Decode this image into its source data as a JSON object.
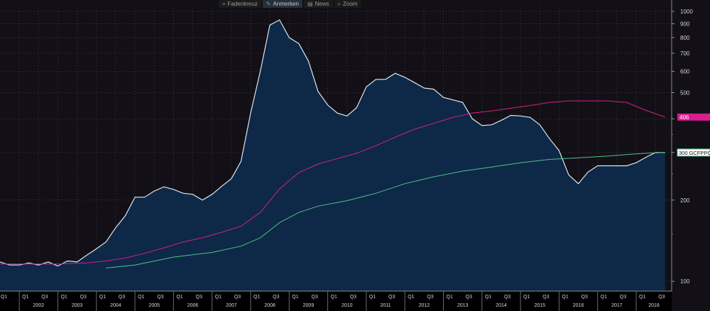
{
  "toolbar": {
    "items": [
      {
        "label": "Fadenkreuz",
        "icon": "crosshair-icon",
        "glyph": "⌖"
      },
      {
        "label": "Anmerken",
        "icon": "pen-icon",
        "glyph": "✎"
      },
      {
        "label": "News",
        "icon": "newspaper-icon",
        "glyph": "▤"
      },
      {
        "label": "Zoom",
        "icon": "magnifier-icon",
        "glyph": "⌕"
      }
    ]
  },
  "colors": {
    "background": "#121016",
    "area_fill": "#0f2a4a",
    "area_line": "#dfe6ee",
    "magenta": "#d81d8f",
    "green": "#52c08a"
  },
  "chart_data": {
    "type": "area",
    "y_scale": "log",
    "ylim": [
      92,
      1050
    ],
    "y_ticks": [
      100,
      200,
      300,
      400,
      500,
      600,
      700,
      800,
      900,
      1000
    ],
    "y_tick_labels": [
      "100",
      "200",
      "",
      "",
      "500",
      "600",
      "700",
      "800",
      "900",
      "1000"
    ],
    "xlim": [
      2001.5,
      2018.92
    ],
    "year_labels": [
      "2002",
      "2003",
      "2004",
      "2005",
      "2006",
      "2007",
      "2008",
      "2009",
      "2010",
      "2011",
      "2012",
      "2013",
      "2014",
      "2015",
      "2016",
      "2017",
      "2018"
    ],
    "quarter_labels": [
      "Q1",
      "Q3"
    ],
    "grid": true,
    "series": [
      {
        "kind": "area",
        "x": [
          2001.5,
          2001.75,
          2002,
          2002.25,
          2002.5,
          2002.75,
          2003,
          2003.25,
          2003.5,
          2003.75,
          2004,
          2004.25,
          2004.5,
          2004.75,
          2005,
          2005.25,
          2005.5,
          2005.75,
          2006,
          2006.25,
          2006.5,
          2006.75,
          2007,
          2007.25,
          2007.5,
          2007.75,
          2008,
          2008.25,
          2008.5,
          2008.75,
          2009,
          2009.25,
          2009.5,
          2009.75,
          2010,
          2010.25,
          2010.5,
          2010.75,
          2011,
          2011.25,
          2011.5,
          2011.75,
          2012,
          2012.25,
          2012.5,
          2012.75,
          2013,
          2013.25,
          2013.5,
          2013.75,
          2014,
          2014.25,
          2014.5,
          2014.75,
          2015,
          2015.25,
          2015.5,
          2015.75,
          2016,
          2016.25,
          2016.5,
          2016.75,
          2017,
          2017.25,
          2017.5,
          2017.75,
          2018,
          2018.25,
          2018.5,
          2018.75
        ],
        "values": [
          118,
          115,
          115,
          117,
          115,
          118,
          114,
          119,
          118,
          125,
          132,
          140,
          158,
          175,
          205,
          205,
          216,
          224,
          219,
          212,
          210,
          200,
          210,
          225,
          240,
          278,
          420,
          600,
          890,
          930,
          800,
          760,
          655,
          505,
          450,
          420,
          410,
          440,
          525,
          560,
          560,
          590,
          570,
          545,
          520,
          515,
          480,
          470,
          460,
          400,
          378,
          380,
          395,
          412,
          410,
          405,
          380,
          338,
          305,
          248,
          230,
          254,
          268,
          268,
          268,
          268,
          275,
          288,
          300,
          300
        ]
      },
      {
        "kind": "line",
        "color_key": "magenta",
        "x": [
          2001.5,
          2002,
          2003,
          2003.75,
          2004.25,
          2004.75,
          2005.25,
          2005.75,
          2006.25,
          2006.75,
          2007.25,
          2007.75,
          2008.25,
          2008.75,
          2009.25,
          2009.75,
          2010.25,
          2010.75,
          2011.25,
          2011.75,
          2012.25,
          2012.75,
          2013.25,
          2013.75,
          2014.25,
          2014.75,
          2015.25,
          2015.75,
          2016.25,
          2016.75,
          2017.25,
          2017.75,
          2018.25,
          2018.75
        ],
        "values": [
          116,
          116,
          116,
          117,
          119,
          122,
          127,
          133,
          140,
          145,
          152,
          160,
          180,
          220,
          253,
          272,
          285,
          298,
          318,
          342,
          366,
          385,
          405,
          420,
          428,
          438,
          448,
          460,
          466,
          466,
          466,
          460,
          430,
          406
        ]
      },
      {
        "kind": "line",
        "color_key": "green",
        "x": [
          2004.25,
          2005,
          2006,
          2007,
          2007.75,
          2008.25,
          2008.75,
          2009.25,
          2009.75,
          2010.5,
          2011.25,
          2012,
          2012.75,
          2013.5,
          2014.25,
          2015,
          2015.75,
          2016.5,
          2017.25,
          2017.75,
          2018.25,
          2018.75
        ],
        "values": [
          112,
          115,
          123,
          128,
          135,
          145,
          165,
          180,
          190,
          199,
          212,
          230,
          244,
          256,
          265,
          275,
          283,
          287,
          291,
          295,
          298,
          300
        ]
      }
    ],
    "badges": [
      {
        "text": "406",
        "value": 406,
        "color_key": "magenta"
      },
      {
        "text": "300 GCFPPC",
        "value": 300,
        "color_key": "green"
      }
    ]
  }
}
